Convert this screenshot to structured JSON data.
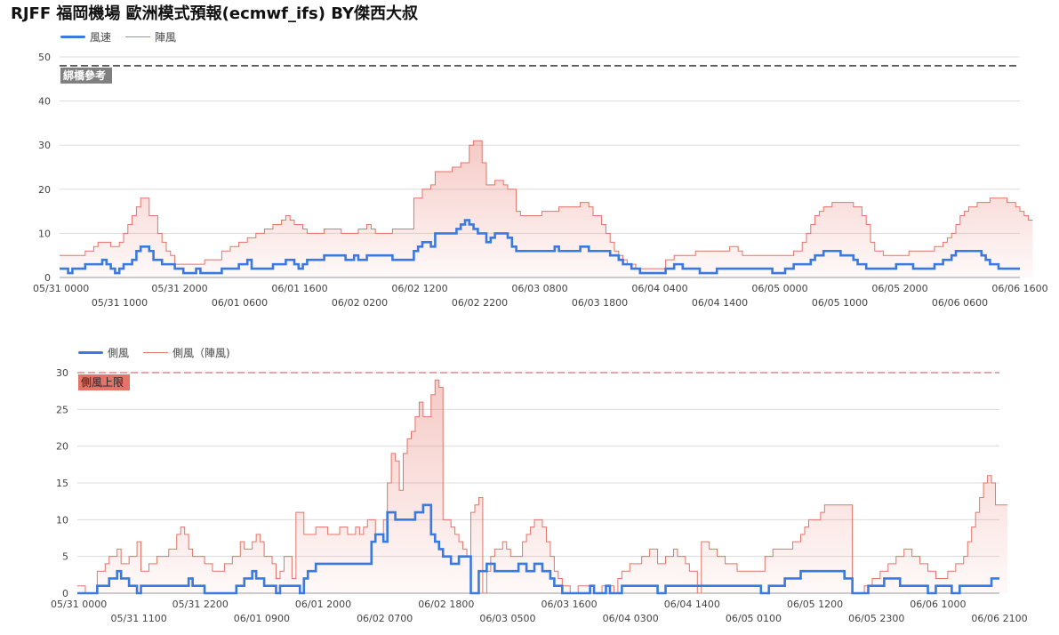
{
  "page": {
    "title": "RJFF 福岡機場 歐洲模式預報(ecmwf_ifs) BY傑西大叔"
  },
  "chart_data": [
    {
      "type": "line",
      "step": true,
      "legend": [
        "風速",
        "陣風"
      ],
      "legend_position": "top-left",
      "reference_line": {
        "value": 48,
        "label": "綁橋參考",
        "color": "#555555",
        "style": "dashed"
      },
      "ylim": [
        0,
        50
      ],
      "yticks": [
        0,
        10,
        20,
        30,
        40,
        50
      ],
      "xticks_row1": [
        "05/31 0000",
        "05/31 2000",
        "06/01 1600",
        "06/02 1200",
        "06/03 0800",
        "06/04 0400",
        "06/05 0000",
        "06/05 2000",
        "06/06 1600"
      ],
      "xticks_row2": [
        "05/31 1000",
        "06/01 0600",
        "06/02 0200",
        "06/02 2200",
        "06/03 1800",
        "06/04 1400",
        "06/05 1000",
        "06/06 0600"
      ],
      "series_colors": [
        "#3a7ae0",
        "#e57368"
      ],
      "series": [
        {
          "name": "風速",
          "values": [
            2,
            2,
            1,
            2,
            2,
            2,
            3,
            3,
            3,
            3,
            4,
            3,
            2,
            1,
            2,
            3,
            3,
            4,
            6,
            7,
            7,
            6,
            4,
            4,
            3,
            3,
            3,
            2,
            2,
            1,
            1,
            1,
            2,
            1,
            1,
            1,
            1,
            1,
            2,
            2,
            2,
            2,
            3,
            3,
            4,
            2,
            2,
            2,
            2,
            2,
            3,
            3,
            3,
            4,
            4,
            3,
            2,
            3,
            4,
            4,
            4,
            4,
            5,
            5,
            5,
            5,
            5,
            4,
            4,
            5,
            4,
            4,
            5,
            5,
            5,
            5,
            5,
            5,
            4,
            4,
            4,
            4,
            4,
            6,
            7,
            8,
            8,
            7,
            10,
            10,
            10,
            10,
            10,
            11,
            12,
            13,
            12,
            11,
            10,
            10,
            8,
            9,
            10,
            10,
            10,
            9,
            7,
            6,
            6,
            6,
            6,
            6,
            6,
            6,
            6,
            6,
            7,
            6,
            6,
            6,
            6,
            6,
            7,
            7,
            6,
            6,
            6,
            6,
            6,
            5,
            5,
            4,
            3,
            3,
            2,
            2,
            1,
            1,
            1,
            1,
            1,
            1,
            2,
            2,
            3,
            3,
            2,
            2,
            2,
            2,
            1,
            1,
            1,
            1,
            2,
            2,
            2,
            2,
            2,
            2,
            2,
            2,
            2,
            2,
            2,
            2,
            2,
            1,
            1,
            1,
            2,
            2,
            3,
            3,
            3,
            3,
            4,
            5,
            5,
            6,
            6,
            6,
            6,
            5,
            5,
            5,
            4,
            3,
            3,
            2,
            2,
            2,
            2,
            2,
            2,
            2,
            3,
            3,
            3,
            3,
            2,
            2,
            2,
            2,
            2,
            3,
            3,
            4,
            4,
            5,
            6,
            6,
            6,
            6,
            6,
            6,
            5,
            4,
            3,
            3,
            2,
            2,
            2,
            2,
            2
          ]
        },
        {
          "name": "陣風",
          "values": [
            5,
            5,
            5,
            5,
            5,
            5,
            6,
            6,
            7,
            8,
            8,
            8,
            7,
            7,
            8,
            10,
            12,
            14,
            16,
            18,
            18,
            14,
            14,
            10,
            8,
            6,
            5,
            3,
            3,
            3,
            3,
            3,
            3,
            3,
            4,
            4,
            4,
            4,
            6,
            6,
            7,
            7,
            8,
            8,
            9,
            9,
            10,
            10,
            11,
            11,
            12,
            12,
            13,
            14,
            13,
            12,
            12,
            11,
            10,
            10,
            10,
            10,
            11,
            11,
            11,
            11,
            10,
            10,
            10,
            10,
            11,
            11,
            12,
            11,
            10,
            10,
            10,
            10,
            11,
            11,
            11,
            11,
            11,
            18,
            18,
            20,
            20,
            21,
            24,
            24,
            24,
            24,
            25,
            25,
            26,
            26,
            30,
            31,
            31,
            26,
            21,
            21,
            22,
            22,
            21,
            20,
            20,
            15,
            14,
            14,
            14,
            14,
            14,
            15,
            15,
            15,
            15,
            16,
            16,
            16,
            16,
            16,
            17,
            17,
            16,
            14,
            14,
            12,
            10,
            8,
            6,
            5,
            4,
            3,
            3,
            2,
            2,
            2,
            2,
            2,
            2,
            2,
            4,
            4,
            5,
            5,
            5,
            5,
            5,
            6,
            6,
            6,
            6,
            6,
            6,
            6,
            6,
            7,
            7,
            6,
            5,
            5,
            5,
            5,
            5,
            5,
            5,
            5,
            5,
            5,
            5,
            5,
            6,
            6,
            8,
            10,
            12,
            14,
            15,
            16,
            16,
            17,
            17,
            17,
            17,
            17,
            16,
            16,
            14,
            12,
            8,
            6,
            6,
            5,
            5,
            5,
            5,
            5,
            5,
            6,
            6,
            6,
            6,
            6,
            6,
            7,
            7,
            8,
            9,
            10,
            12,
            14,
            15,
            16,
            16,
            17,
            17,
            17,
            18,
            18,
            18,
            18,
            17,
            17,
            16,
            15,
            14,
            13
          ]
        }
      ]
    },
    {
      "type": "line",
      "step": true,
      "legend": [
        "側風",
        "側風（陣風)"
      ],
      "legend_position": "top-left",
      "reference_line": {
        "value": 30,
        "label": "側風上限",
        "color": "#c0504d",
        "style": "dashed"
      },
      "ylim": [
        0,
        30
      ],
      "yticks": [
        0,
        5,
        10,
        15,
        20,
        25,
        30
      ],
      "xticks_row1": [
        "05/31 0000",
        "05/31 2200",
        "06/01 2000",
        "06/02 1800",
        "06/03 1600",
        "06/04 1400",
        "06/05 1200",
        "06/06 1000"
      ],
      "xticks_row2": [
        "05/31 1100",
        "06/01 0900",
        "06/02 0700",
        "06/03 0500",
        "06/04 0300",
        "06/05 0100",
        "06/05 2300",
        "06/06 2100"
      ],
      "series_colors": [
        "#3a7ae0",
        "#e57368"
      ],
      "series": [
        {
          "name": "側風",
          "values": [
            0,
            0,
            0,
            0,
            0,
            1,
            1,
            1,
            2,
            2,
            3,
            2,
            2,
            1,
            1,
            0,
            1,
            1,
            1,
            1,
            1,
            1,
            1,
            1,
            1,
            1,
            1,
            1,
            2,
            1,
            1,
            1,
            0,
            0,
            0,
            0,
            0,
            0,
            0,
            0,
            1,
            1,
            2,
            2,
            3,
            2,
            2,
            1,
            1,
            1,
            0,
            1,
            1,
            1,
            1,
            1,
            0,
            2,
            3,
            3,
            4,
            4,
            4,
            4,
            4,
            4,
            4,
            4,
            4,
            4,
            4,
            4,
            4,
            4,
            7,
            8,
            8,
            7,
            11,
            11,
            10,
            10,
            10,
            10,
            10,
            11,
            11,
            12,
            12,
            8,
            7,
            6,
            5,
            5,
            4,
            4,
            5,
            5,
            5,
            0,
            0,
            3,
            3,
            4,
            4,
            3,
            3,
            3,
            3,
            3,
            3,
            4,
            4,
            3,
            3,
            4,
            4,
            3,
            3,
            2,
            1,
            1,
            0,
            0,
            0,
            0,
            0,
            0,
            0,
            1,
            0,
            0,
            0,
            1,
            0,
            0,
            0,
            1,
            1,
            1,
            1,
            1,
            1,
            1,
            1,
            1,
            0,
            0,
            1,
            1,
            1,
            1,
            1,
            1,
            1,
            1,
            1,
            1,
            1,
            1,
            1,
            1,
            1,
            1,
            1,
            1,
            1,
            1,
            1,
            1,
            1,
            1,
            0,
            0,
            1,
            1,
            1,
            1,
            2,
            2,
            2,
            2,
            3,
            3,
            3,
            3,
            3,
            3,
            3,
            3,
            3,
            3,
            3,
            2,
            2,
            0,
            0,
            0,
            0,
            1,
            1,
            1,
            1,
            2,
            2,
            2,
            2,
            1,
            1,
            1,
            1,
            1,
            1,
            1,
            0,
            0,
            1,
            1,
            1,
            1,
            0,
            0,
            1,
            1,
            1,
            1,
            1,
            1,
            1,
            1,
            2,
            2
          ]
        },
        {
          "name": "側風（陣風)",
          "values": [
            1,
            1,
            0,
            0,
            0,
            3,
            3,
            4,
            5,
            5,
            6,
            4,
            4,
            5,
            5,
            7,
            3,
            3,
            4,
            4,
            5,
            5,
            5,
            6,
            6,
            8,
            9,
            8,
            6,
            5,
            5,
            5,
            4,
            4,
            3,
            3,
            3,
            4,
            4,
            5,
            5,
            7,
            6,
            6,
            7,
            8,
            7,
            5,
            5,
            4,
            2,
            3,
            5,
            5,
            2,
            11,
            11,
            8,
            8,
            8,
            9,
            9,
            9,
            8,
            8,
            8,
            9,
            9,
            8,
            8,
            9,
            8,
            9,
            10,
            10,
            8,
            8,
            10,
            15,
            19,
            18,
            14,
            19,
            21,
            22,
            24,
            26,
            24,
            24,
            27,
            29,
            28,
            10,
            10,
            9,
            8,
            7,
            6,
            5,
            11,
            12,
            13,
            0,
            3,
            5,
            6,
            6,
            7,
            6,
            5,
            5,
            5,
            7,
            8,
            9,
            10,
            10,
            9,
            7,
            5,
            3,
            2,
            1,
            1,
            0,
            0,
            1,
            1,
            1,
            0,
            0,
            0,
            1,
            1,
            1,
            0,
            2,
            3,
            3,
            4,
            4,
            4,
            5,
            5,
            6,
            6,
            4,
            4,
            5,
            5,
            6,
            5,
            5,
            4,
            3,
            3,
            0,
            7,
            7,
            6,
            6,
            5,
            5,
            4,
            4,
            4,
            3,
            3,
            3,
            3,
            3,
            3,
            3,
            5,
            5,
            6,
            6,
            6,
            6,
            6,
            7,
            7,
            8,
            9,
            10,
            10,
            10,
            11,
            12,
            12,
            12,
            12,
            12,
            12,
            12,
            0,
            0,
            0,
            1,
            1,
            2,
            2,
            3,
            3,
            4,
            4,
            5,
            5,
            6,
            6,
            5,
            5,
            4,
            4,
            3,
            3,
            2,
            2,
            2,
            3,
            3,
            4,
            4,
            5,
            7,
            9,
            11,
            13,
            15,
            16,
            15,
            12,
            12,
            12
          ]
        }
      ]
    }
  ]
}
